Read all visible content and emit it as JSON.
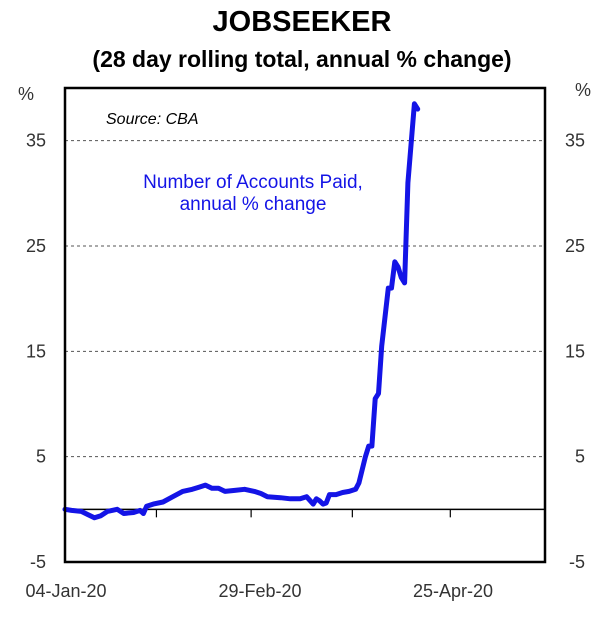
{
  "chart_data": {
    "type": "line",
    "title": "JOBSEEKER",
    "subtitle": "(28 day rolling total, annual % change)",
    "y_unit_left": "%",
    "y_unit_right": "%",
    "ylim": [
      -5,
      40
    ],
    "yticks": [
      -5,
      5,
      15,
      25,
      35
    ],
    "x_tick_labels": [
      "04-Jan-20",
      "29-Feb-20",
      "25-Apr-20"
    ],
    "xlim": [
      "2020-01-04",
      "2020-05-30"
    ],
    "source": "Source: CBA",
    "annotation_lines": [
      "Number of Accounts Paid,",
      "annual % change"
    ],
    "colors": {
      "line": "#1414e6",
      "annotation": "#1414e6"
    },
    "grid": "horizontal dashed",
    "series": [
      {
        "values": [
          [
            "2020-01-04",
            0.0
          ],
          [
            "2020-01-06",
            -0.1
          ],
          [
            "2020-01-09",
            -0.2
          ],
          [
            "2020-01-11",
            -0.5
          ],
          [
            "2020-01-13",
            -0.8
          ],
          [
            "2020-01-15",
            -0.6
          ],
          [
            "2020-01-17",
            -0.2
          ],
          [
            "2020-01-20",
            0.0
          ],
          [
            "2020-01-22",
            -0.4
          ],
          [
            "2020-01-25",
            -0.3
          ],
          [
            "2020-01-27",
            -0.1
          ],
          [
            "2020-01-28",
            -0.4
          ],
          [
            "2020-01-29",
            0.3
          ],
          [
            "2020-01-31",
            0.5
          ],
          [
            "2020-02-03",
            0.7
          ],
          [
            "2020-02-06",
            1.2
          ],
          [
            "2020-02-09",
            1.7
          ],
          [
            "2020-02-12",
            1.9
          ],
          [
            "2020-02-14",
            2.1
          ],
          [
            "2020-02-16",
            2.3
          ],
          [
            "2020-02-18",
            2.0
          ],
          [
            "2020-02-20",
            2.0
          ],
          [
            "2020-02-22",
            1.7
          ],
          [
            "2020-02-25",
            1.8
          ],
          [
            "2020-02-28",
            1.9
          ],
          [
            "2020-03-02",
            1.7
          ],
          [
            "2020-03-04",
            1.5
          ],
          [
            "2020-03-06",
            1.2
          ],
          [
            "2020-03-10",
            1.1
          ],
          [
            "2020-03-13",
            1.0
          ],
          [
            "2020-03-16",
            1.0
          ],
          [
            "2020-03-18",
            1.2
          ],
          [
            "2020-03-20",
            0.5
          ],
          [
            "2020-03-21",
            1.0
          ],
          [
            "2020-03-22",
            0.8
          ],
          [
            "2020-03-23",
            0.5
          ],
          [
            "2020-03-24",
            0.6
          ],
          [
            "2020-03-25",
            1.4
          ],
          [
            "2020-03-27",
            1.4
          ],
          [
            "2020-03-29",
            1.6
          ],
          [
            "2020-03-31",
            1.7
          ],
          [
            "2020-04-02",
            1.9
          ],
          [
            "2020-04-03",
            2.5
          ],
          [
            "2020-04-05",
            5.0
          ],
          [
            "2020-04-06",
            6.0
          ],
          [
            "2020-04-07",
            6.0
          ],
          [
            "2020-04-08",
            10.5
          ],
          [
            "2020-04-09",
            11.0
          ],
          [
            "2020-04-10",
            15.5
          ],
          [
            "2020-04-12",
            21.0
          ],
          [
            "2020-04-13",
            21.0
          ],
          [
            "2020-04-14",
            23.5
          ],
          [
            "2020-04-15",
            23.0
          ],
          [
            "2020-04-16",
            22.0
          ],
          [
            "2020-04-17",
            21.5
          ],
          [
            "2020-04-18",
            31.0
          ],
          [
            "2020-04-20",
            38.5
          ],
          [
            "2020-04-21",
            38.0
          ]
        ]
      }
    ]
  }
}
